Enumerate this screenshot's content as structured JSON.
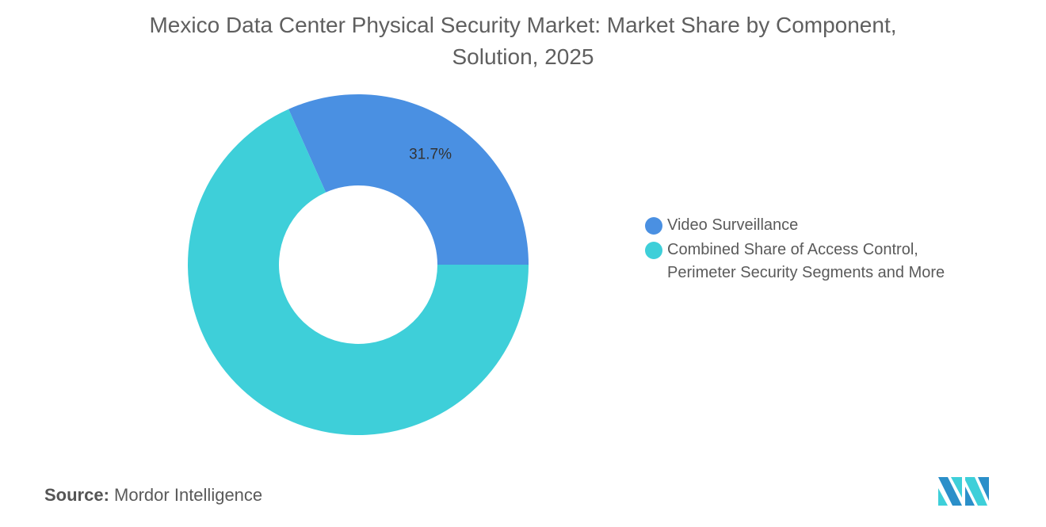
{
  "chart_data": {
    "type": "pie",
    "subtype": "donut",
    "title": "Mexico Data Center Physical Security Market: Market Share by Component, Solution, 2025",
    "categories": [
      "Video Surveillance",
      "Combined Share of Access Control, Perimeter Security Segments and More"
    ],
    "values": [
      31.7,
      68.3
    ],
    "colors": [
      "#4a90e2",
      "#3ecfd9"
    ],
    "data_labels": [
      "31.7%",
      ""
    ],
    "legend_position": "right"
  },
  "title_lines": [
    "Mexico Data Center Physical Security Market: Market Share by Component,",
    "Solution, 2025"
  ],
  "legend": [
    {
      "lines": [
        "Video Surveillance"
      ]
    },
    {
      "lines": [
        "Combined Share of Access Control,",
        "Perimeter Security Segments and More"
      ]
    }
  ],
  "source": {
    "label": "Source:",
    "value": "Mordor Intelligence"
  },
  "logo": {
    "icon": "mordor-intelligence-logo",
    "colors": [
      "#2b8fc9",
      "#3ecfd9"
    ]
  }
}
